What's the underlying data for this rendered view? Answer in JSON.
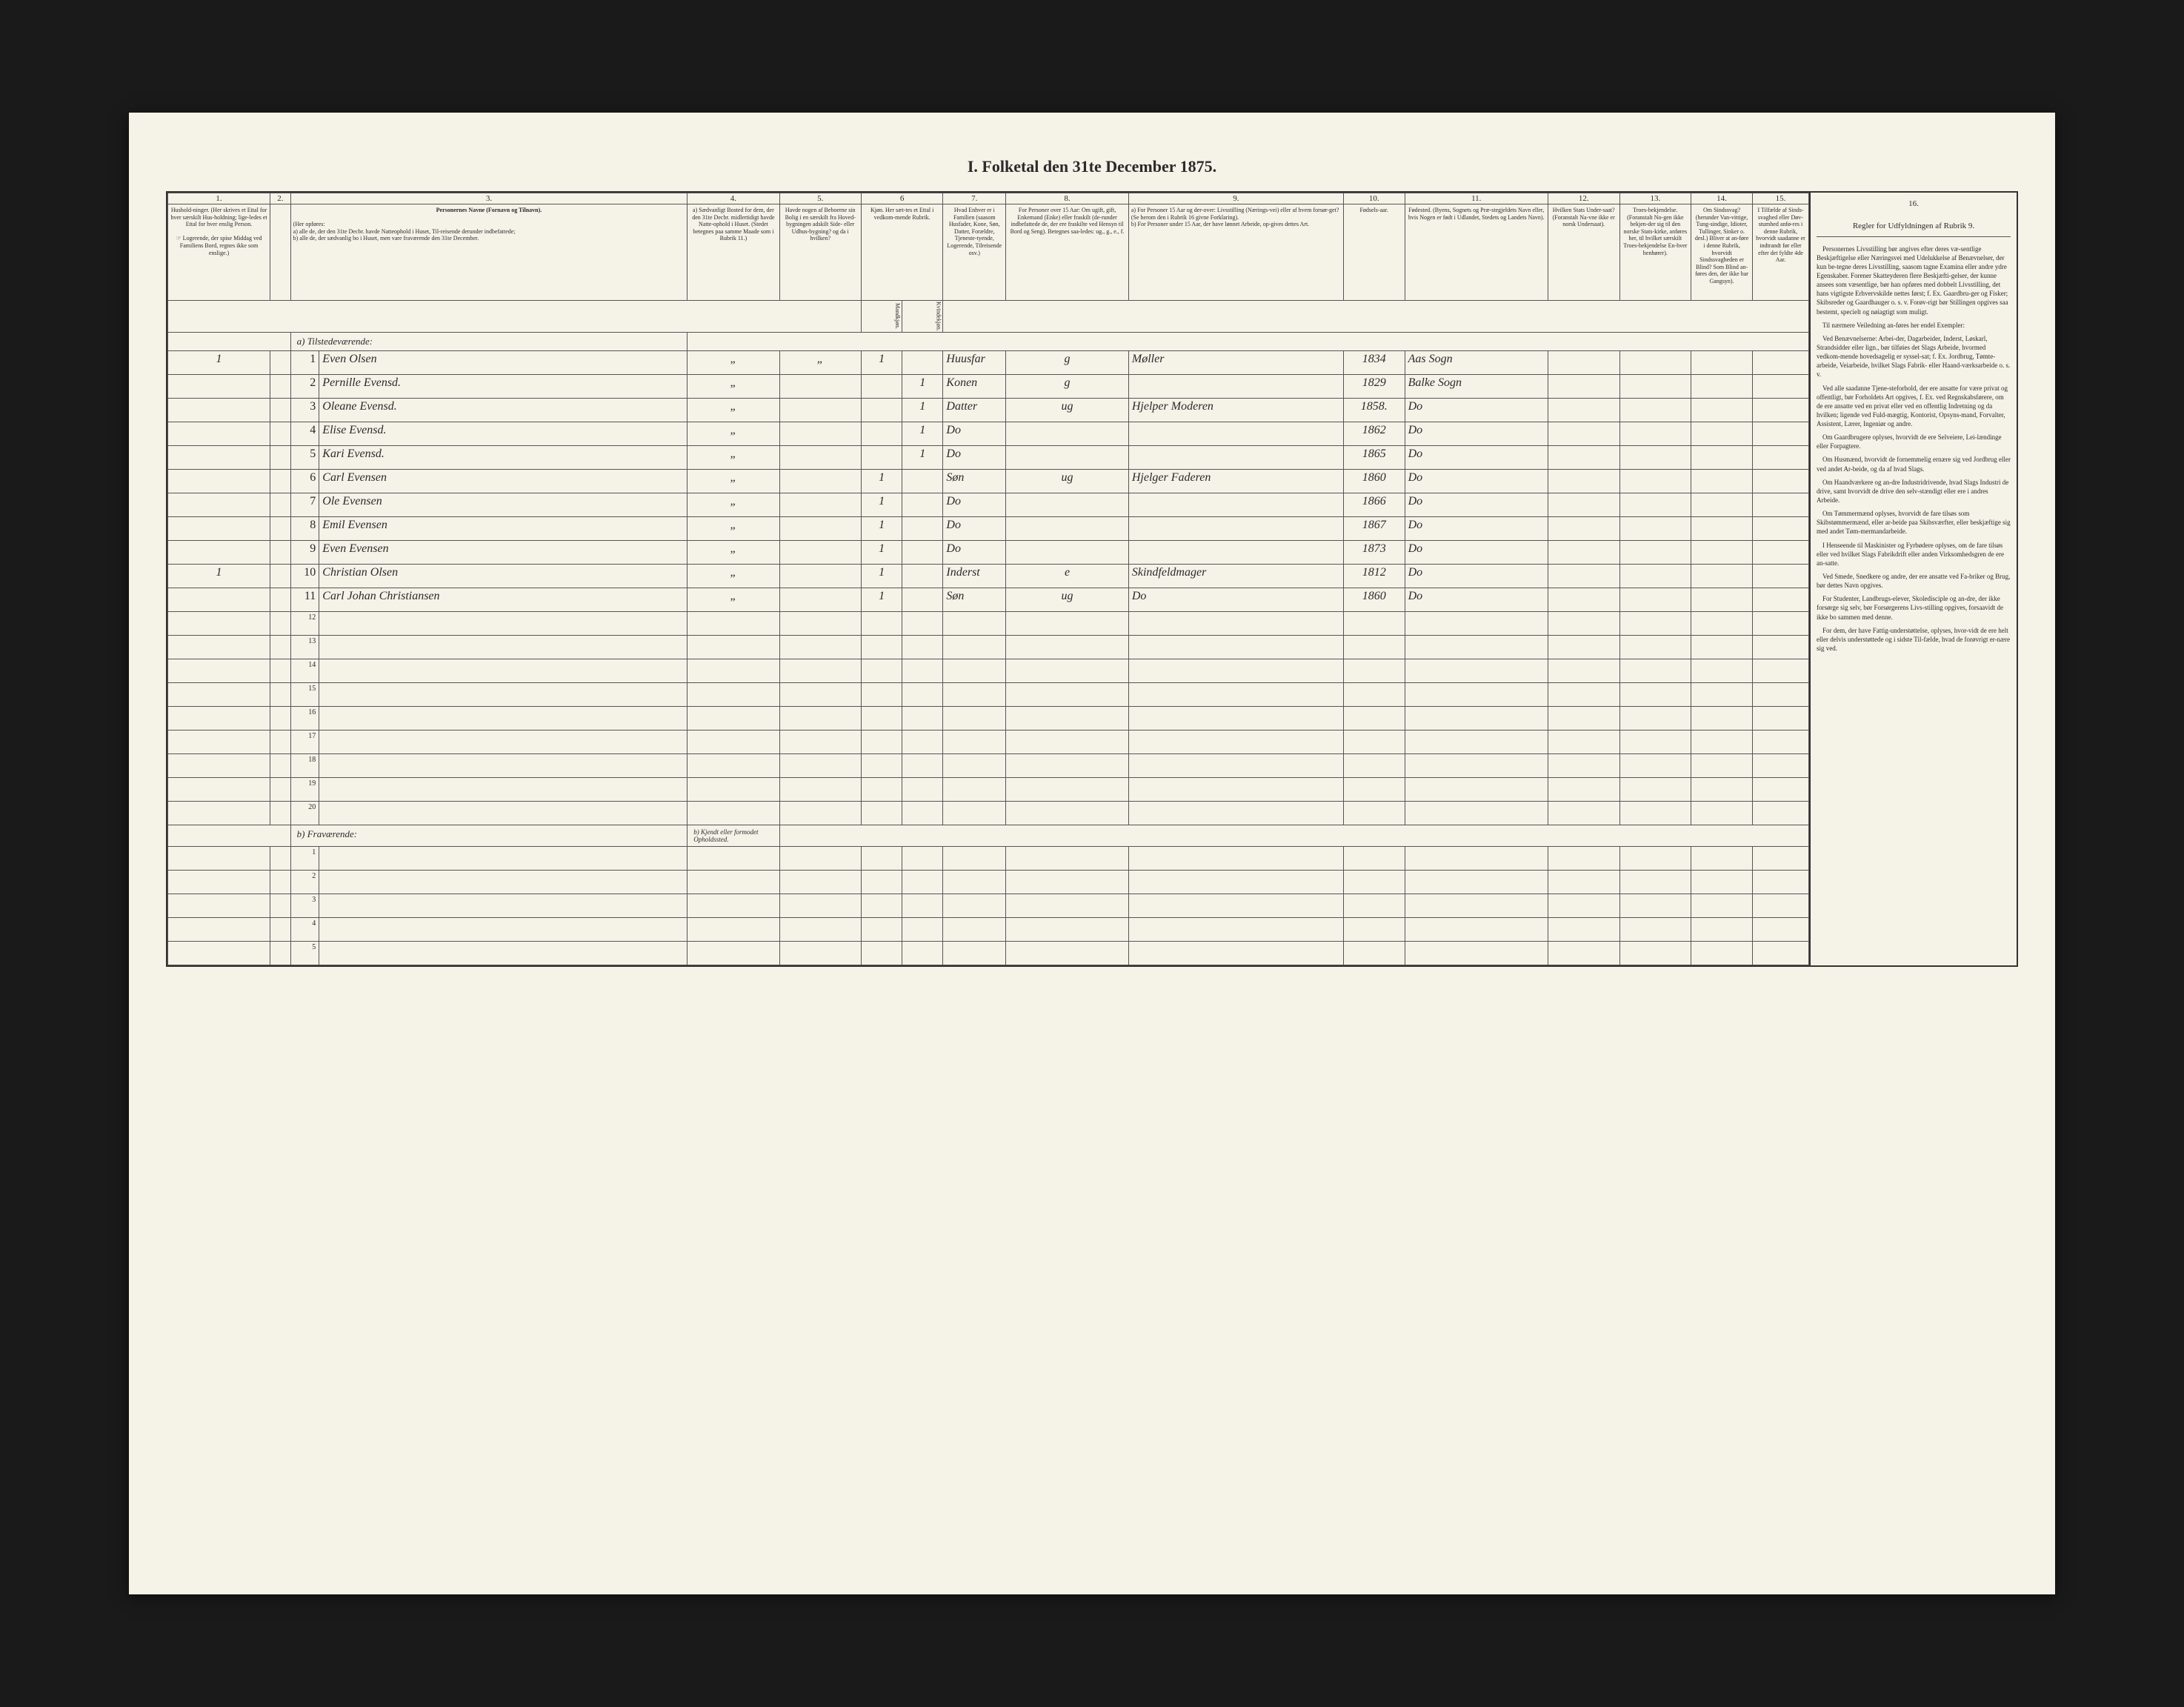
{
  "title": "I.  Folketal den 31te December 1875.",
  "columns": {
    "nums": [
      "1.",
      "2.",
      "3.",
      "4.",
      "5.",
      "6",
      "7.",
      "8.",
      "9.",
      "10.",
      "11.",
      "12.",
      "13.",
      "14.",
      "15.",
      "16."
    ],
    "h1": "Hushold-ninger. (Her skrives et Ettal for hver særskilt Hus-holdning; lige-ledes et Ettal for hver enslig Person.",
    "h1_note": "☞ Logerende, der spise Middag ved Familiens Bord, regnes ikke som enslige.)",
    "h3_title": "Personernes Navne (Fornavn og Tilnavn).",
    "h3_sub": "(Her opføres:\na) alle de, der den 31te Decbr. havde Natteophold i Huset, Til-reisende derunder indbefattede;\nb) alle de, der sædvanlig bo i Huset, men vare fraværende den 31te December.",
    "h4": "a) Sædvanligt Bosted for dem, der den 31te Decbr. midlertidigt havde Natte-ophold i Huset. (Stedet betegnes paa samme Maade som i Rubrik 11.)",
    "h5": "Havde nogen af Beboerne sin Bolig i en særskilt fra Hoved-bygningen adskilt Side- eller Udhus-bygning? og da i hvilken?",
    "h6": "Kjøn. Her sæt-tes et Ettal i vedkom-mende Rubrik.",
    "h6a": "Mandkjøn.",
    "h6b": "Kvindekjøn.",
    "h7": "Hvad Enhver er i Familien (saasom Husfader, Kone, Søn, Datter, Forældre, Tjeneste-tyende, Logerende, Tilreisende osv.)",
    "h8": "For Personer over 15 Aar: Om ugift, gift, Enkemand (Enke) eller fraskilt (de-runder indbefattede de, der ere fraskilte ved Hensyn til Bord og Seng). Betegnes saa-ledes: ug., g., e., f.",
    "h9": "a) For Personer 15 Aar og der-over: Livsstilling (Nærings-vei) eller af hvem forsør-get? (Se herom den i Rubrik 16 givne Forklaring).\nb) For Personer under 15 Aar, der have lønnet Arbeide, op-gives dettes Art.",
    "h10": "Fødsels-aar.",
    "h11": "Fødested. (Byens, Sognets og Præ-stegjeldets Navn eller, hvis Nogen er født i Udlandet, Stedets og Landets Navn).",
    "h12": "Hvilken Stats Under-saat? (Foranstalt Na-vne ikke er norsk Undersaat).",
    "h13": "Troes-bekjendelse. (Foranstalt No-gen ikke bekjen-der sig til den norske Stats-kirke, anføres her, til hvilket særskilt Troes-bekjendelse En-hver henhører).",
    "h14": "Om Sindssvag? (herunder Van-vittige, Tung-sindige, Idioter, Tullinger, Sinker o. desl.) Bliver at an-føre i denne Rubrik, hvorvidt Sindssvagheden er Blind? Som Blind an-føres den, der ikke har Gangsyn).",
    "h15": "I Tilfælde af Sinds-svaghed eller Døv-stumhed anfø-res i denne Rubrik, hvorvidt saadanne er indtrandt før eller efter det fyldte 4de Aar.",
    "h16": "Regler for Udfyldningen af Rubrik 9."
  },
  "section_a": "a) Tilstedeværende:",
  "section_b": "b) Fraværende:",
  "section_b_note": "b) Kjendt eller formodet Opholdssted.",
  "rows": [
    {
      "hh": "1",
      "n": "1",
      "name": "Even Olsen",
      "c4": "„",
      "c5": "„",
      "m": "1",
      "k": "",
      "rel": "Huusfar",
      "stat": "g",
      "occ": "Møller",
      "year": "1834",
      "place": "Aas Sogn"
    },
    {
      "hh": "",
      "n": "2",
      "name": "Pernille Evensd.",
      "c4": "„",
      "c5": "",
      "m": "",
      "k": "1",
      "rel": "Konen",
      "stat": "g",
      "occ": "",
      "year": "1829",
      "place": "Balke Sogn"
    },
    {
      "hh": "",
      "n": "3",
      "name": "Oleane Evensd.",
      "c4": "„",
      "c5": "",
      "m": "",
      "k": "1",
      "rel": "Datter",
      "stat": "ug",
      "occ": "Hjelper Moderen",
      "year": "1858.",
      "place": "Do"
    },
    {
      "hh": "",
      "n": "4",
      "name": "Elise Evensd.",
      "c4": "„",
      "c5": "",
      "m": "",
      "k": "1",
      "rel": "Do",
      "stat": "",
      "occ": "",
      "year": "1862",
      "place": "Do"
    },
    {
      "hh": "",
      "n": "5",
      "name": "Kari Evensd.",
      "c4": "„",
      "c5": "",
      "m": "",
      "k": "1",
      "rel": "Do",
      "stat": "",
      "occ": "",
      "year": "1865",
      "place": "Do"
    },
    {
      "hh": "",
      "n": "6",
      "name": "Carl Evensen",
      "c4": "„",
      "c5": "",
      "m": "1",
      "k": "",
      "rel": "Søn",
      "stat": "ug",
      "occ": "Hjelger Faderen",
      "year": "1860",
      "place": "Do"
    },
    {
      "hh": "",
      "n": "7",
      "name": "Ole Evensen",
      "c4": "„",
      "c5": "",
      "m": "1",
      "k": "",
      "rel": "Do",
      "stat": "",
      "occ": "",
      "year": "1866",
      "place": "Do"
    },
    {
      "hh": "",
      "n": "8",
      "name": "Emil Evensen",
      "c4": "„",
      "c5": "",
      "m": "1",
      "k": "",
      "rel": "Do",
      "stat": "",
      "occ": "",
      "year": "1867",
      "place": "Do"
    },
    {
      "hh": "",
      "n": "9",
      "name": "Even Evensen",
      "c4": "„",
      "c5": "",
      "m": "1",
      "k": "",
      "rel": "Do",
      "stat": "",
      "occ": "",
      "year": "1873",
      "place": "Do"
    },
    {
      "hh": "1",
      "n": "10",
      "name": "Christian Olsen",
      "c4": "„",
      "c5": "",
      "m": "1",
      "k": "",
      "rel": "Inderst",
      "stat": "e",
      "occ": "Skindfeldmager",
      "year": "1812",
      "place": "Do"
    },
    {
      "hh": "",
      "n": "11",
      "name": "Carl Johan Christiansen",
      "c4": "„",
      "c5": "",
      "m": "1",
      "k": "",
      "rel": "Søn",
      "stat": "ug",
      "occ": "Do",
      "year": "1860",
      "place": "Do"
    }
  ],
  "empty_a": [
    "12",
    "13",
    "14",
    "15",
    "16",
    "17",
    "18",
    "19",
    "20"
  ],
  "empty_b": [
    "1",
    "2",
    "3",
    "4",
    "5"
  ],
  "rules": {
    "title": "Regler for Udfyldningen af Rubrik 9.",
    "paras": [
      "Personernes Livsstilling bør angives efter deres væ-sentlige Beskjæftigelse eller Næringsvei med Udelukkelse af Benævnelser, der kun be-tegne deres Livsstilling, saasom tagne Examina eller andre ydre Egenskaber. Forener Skatteyderen flere Beskjæfti-gelser, der kunne ansees som væsentlige, bør han opføres med dobbelt Livsstilling, det hans vigtigste Erhvervskilde nettes først; f. Ex. Gaardbru-ger og Fisker; Skibsreder og Gaardhauger o. s. v. Forøv-rigt bør Stillingen opgives saa bestemt, specielt og nøiagtigt som muligt.",
      "Til nærmere Veiledning an-føres her endel Exempler:",
      "Ved Benævnelserne: Arbei-der, Dagarbeider, Inderst, Løskarl, Strandsidder eller lign., bør tilføies det Slags Arbeide, hvormed vedkom-mende hovedsagelig er syssel-sat; f. Ex. Jordbrug, Tømte-arbeide, Veiarbeide, hvilket Slags Fabrik- eller Haand-værksarbeide o. s. v.",
      "Ved alle saadanne Tjene-steforhold, der ere ansatte for være privat og offentligt, bør Forholdets Art opgives, f. Ex. ved Regnskabsførere, om de ere ansatte ved en privat eller ved en offentlig Indretning og da hvilken; ligende ved Fuld-mægtig, Kontorist, Opsyns-mand, Forvalter, Assistent, Lærer, Ingeniør og andre.",
      "Om Gaardbrugere oplyses, hvorvidt de ere Selveiere, Lei-lændinge eller Forpagtere.",
      "Om Husmænd, hvorvidt de fornemmelig ernære sig ved Jordbrug eller ved andet Ar-beide, og da af hvad Slags.",
      "Om Haandværkere og an-dre Industridrivende, hvad Slags Industri de drive, samt hvorvidt de drive den selv-stændigt eller ere i andres Arbeide.",
      "Om Tømmermænd oplyses, hvorvidt de fare tilsøs som Skibstømmermænd, eller ar-beide paa Skibsværfter, eller beskjæftige sig med andet Tøm-mermandarbeide.",
      "I Henseende til Maskinister og Fyrbødere oplyses, om de fare tilsøs eller ved hvilket Slags Fabrikdrift eller anden Virksomhedsgren de ere an-satte.",
      "Ved Smede, Snedkere og andre, der ere ansatte ved Fa-briker og Brug, bør dettes Navn opgives.",
      "For Studenter, Landbrugs-elever, Skoledisciple og an-dre, der ikke forsørge sig selv, bør Forsørgerens Livs-stilling opgives, forsaavidt de ikke bo sammen med denne.",
      "For dem, der have Fattig-understøttelse, oplyses, hvor-vidt de ere helt eller delvis understøttede og i sidste Til-fælde, hvad de forøvrigt er-nære sig ved."
    ]
  }
}
